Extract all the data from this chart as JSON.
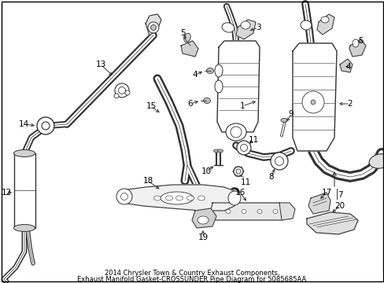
{
  "title_line1": "2014 Chrysler Town & Country Exhaust Components,",
  "title_line2": "Exhaust Manifold Gasket-CROSSUNDER Pipe Diagram for 5085685AA",
  "background_color": "#ffffff",
  "border_color": "#000000",
  "text_color": "#000000",
  "title_fontsize": 6.0,
  "fig_width": 4.89,
  "fig_height": 3.6,
  "dpi": 100,
  "line_color": "#333333",
  "fill_color": "#f0f0f0"
}
